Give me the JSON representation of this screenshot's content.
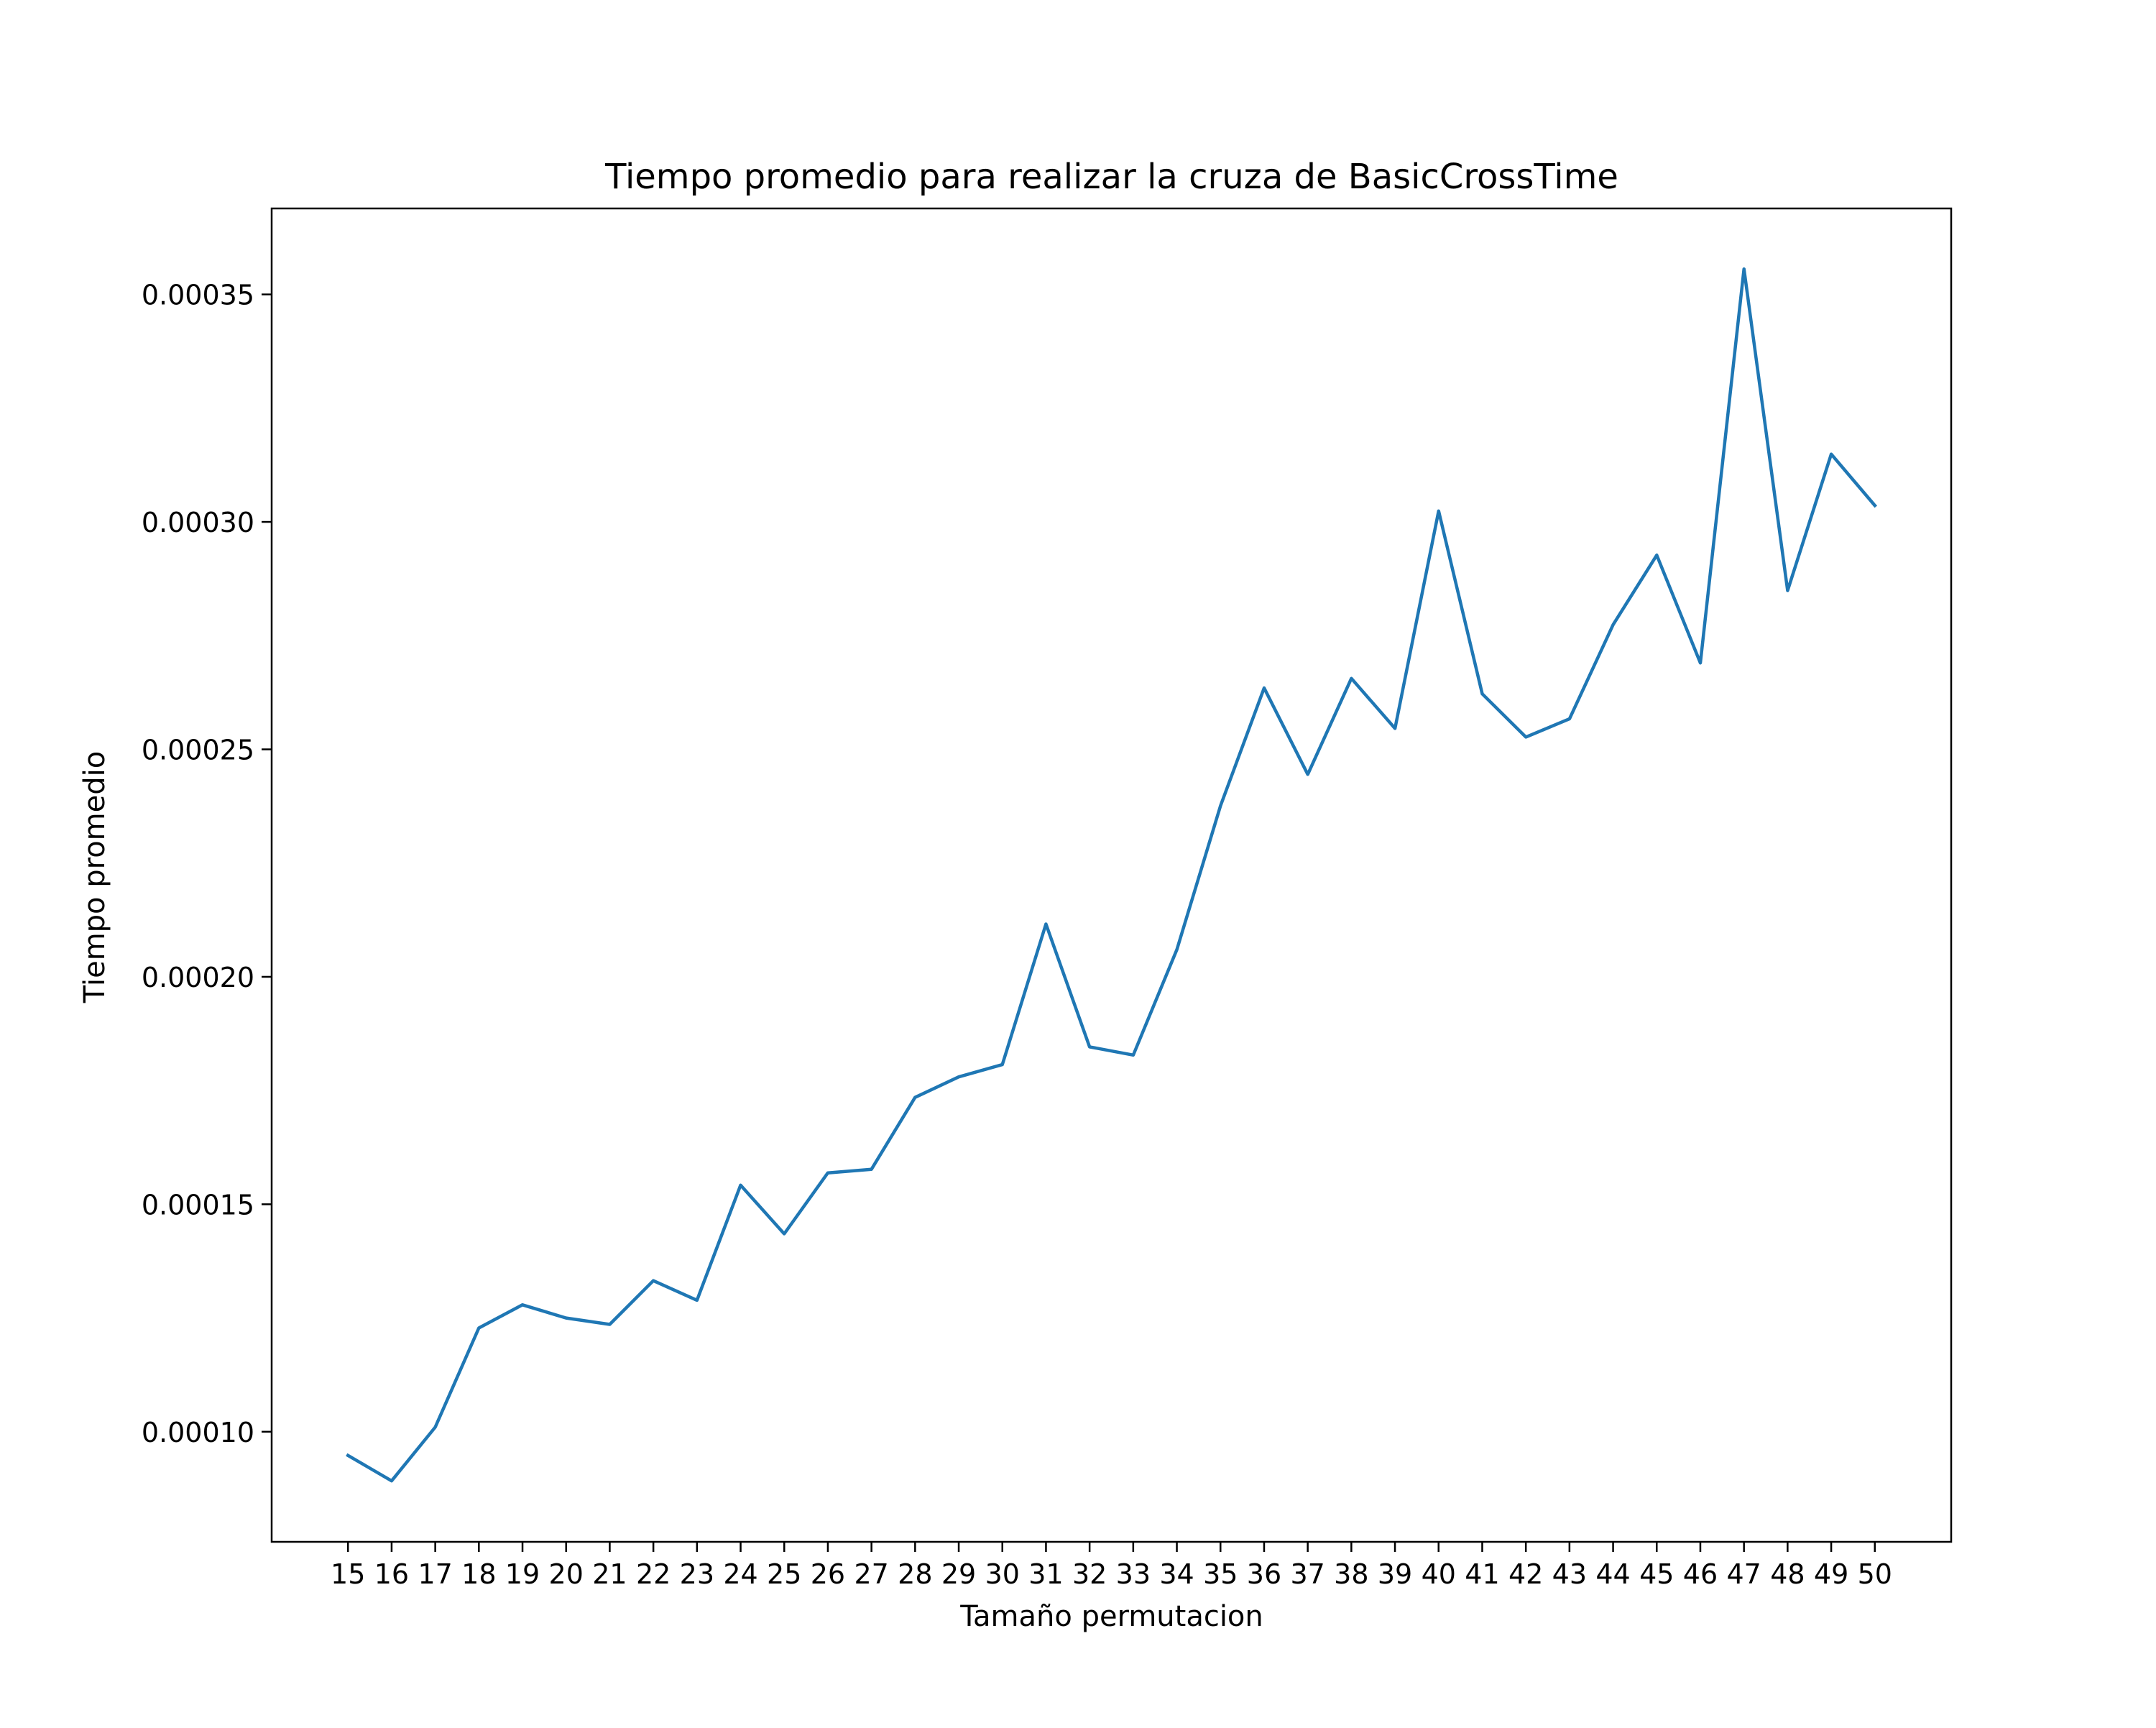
{
  "chart_data": {
    "type": "line",
    "title": "Tiempo promedio para realizar la cruza de BasicCrossTime",
    "xlabel": "Tamaño permutacion",
    "ylabel": "Tiempo promedio",
    "x": [
      15,
      16,
      17,
      18,
      19,
      20,
      21,
      22,
      23,
      24,
      25,
      26,
      27,
      28,
      29,
      30,
      31,
      32,
      33,
      34,
      35,
      36,
      37,
      38,
      39,
      40,
      41,
      42,
      43,
      44,
      45,
      46,
      47,
      48,
      49,
      50
    ],
    "series": [
      {
        "values": [
          9.48e-05,
          8.92e-05,
          0.000101,
          0.0001228,
          0.0001279,
          0.000125,
          0.0001236,
          0.0001332,
          0.0001289,
          0.0001542,
          0.0001435,
          0.0001569,
          0.0001577,
          0.0001735,
          0.000178,
          0.0001807,
          0.0002116,
          0.0001846,
          0.0001828,
          0.000206,
          0.0002376,
          0.0002635,
          0.0002445,
          0.0002656,
          0.0002546,
          0.0003024,
          0.0002622,
          0.0002527,
          0.0002567,
          0.0002774,
          0.0002927,
          0.000269,
          0.0003556,
          0.0002849,
          0.0003149,
          0.0003036
        ],
        "color": "#1f77b4"
      }
    ],
    "xticks": [
      "15",
      "16",
      "17",
      "18",
      "19",
      "20",
      "21",
      "22",
      "23",
      "24",
      "25",
      "26",
      "27",
      "28",
      "29",
      "30",
      "31",
      "32",
      "33",
      "34",
      "35",
      "36",
      "37",
      "38",
      "39",
      "40",
      "41",
      "42",
      "43",
      "44",
      "45",
      "46",
      "47",
      "48",
      "49",
      "50"
    ],
    "yticks": [
      {
        "value": 0.0001,
        "label": "0.00010"
      },
      {
        "value": 0.00015,
        "label": "0.00015"
      },
      {
        "value": 0.0002,
        "label": "0.00020"
      },
      {
        "value": 0.00025,
        "label": "0.00025"
      },
      {
        "value": 0.0003,
        "label": "0.00030"
      },
      {
        "value": 0.00035,
        "label": "0.00035"
      }
    ],
    "xlim": [
      13.25,
      51.75
    ],
    "ylim": [
      7.58e-05,
      0.0003689
    ],
    "grid": false,
    "legend": "none"
  }
}
